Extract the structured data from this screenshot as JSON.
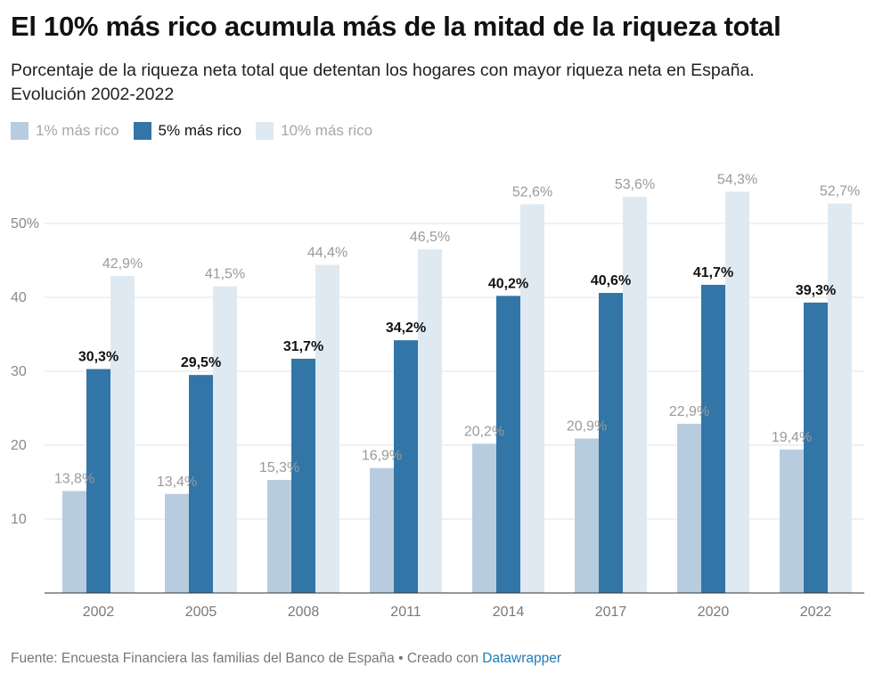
{
  "header": {
    "title": "El 10% más rico acumula más de la mitad de la riqueza total",
    "subtitle_line1": "Porcentaje de la riqueza neta total que detentan los hogares con mayor riqueza neta en España.",
    "subtitle_line2": "Evolución 2002-2022"
  },
  "legend": [
    {
      "label": "1% más rico",
      "color": "#b8ccdf",
      "active": false
    },
    {
      "label": "5% más rico",
      "color": "#3275a7",
      "active": true
    },
    {
      "label": "10% más rico",
      "color": "#dfe9f2",
      "active": false
    }
  ],
  "chart_data": {
    "type": "bar",
    "categories": [
      "2002",
      "2005",
      "2008",
      "2011",
      "2014",
      "2017",
      "2020",
      "2022"
    ],
    "series": [
      {
        "name": "1% más rico",
        "values": [
          13.8,
          13.4,
          15.3,
          16.9,
          20.2,
          20.9,
          22.9,
          19.4
        ],
        "color": "#b8ccdf",
        "label_color": "#9a9a9a",
        "label_bold": false
      },
      {
        "name": "5% más rico",
        "values": [
          30.3,
          29.5,
          31.7,
          34.2,
          40.2,
          40.6,
          41.7,
          39.3
        ],
        "color": "#3275a7",
        "label_color": "#111111",
        "label_bold": true
      },
      {
        "name": "10% más rico",
        "values": [
          42.9,
          41.5,
          44.4,
          46.5,
          52.6,
          53.6,
          54.3,
          52.7
        ],
        "color": "#dfe9f2",
        "label_color": "#9a9a9a",
        "label_bold": false
      }
    ],
    "value_labels": [
      [
        "13,8%",
        "13,4%",
        "15,3%",
        "16,9%",
        "20,2%",
        "20,9%",
        "22,9%",
        "19,4%"
      ],
      [
        "30,3%",
        "29,5%",
        "31,7%",
        "34,2%",
        "40,2%",
        "40,6%",
        "41,7%",
        "39,3%"
      ],
      [
        "42,9%",
        "41,5%",
        "44,4%",
        "46,5%",
        "52,6%",
        "53,6%",
        "54,3%",
        "52,7%"
      ]
    ],
    "yticks": [
      10,
      20,
      30,
      40,
      50
    ],
    "ytick_labels": [
      "10",
      "20",
      "30",
      "40",
      "50%"
    ],
    "ylim": [
      0,
      60
    ],
    "grid": true,
    "legend_position": "top-left"
  },
  "footer": {
    "source": "Fuente: Encuesta Financiera las familias del Banco de España • Creado con ",
    "credit": "Datawrapper"
  }
}
